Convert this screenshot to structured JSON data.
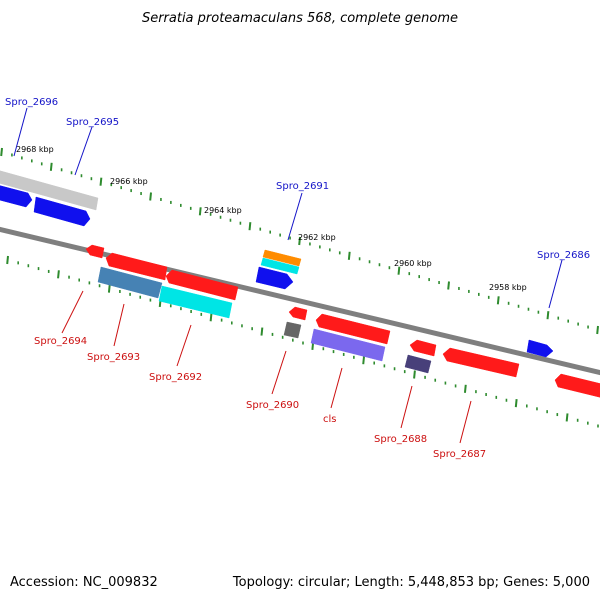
{
  "title": "Serratia proteamaculans 568, complete genome",
  "footer": {
    "accession": "Accession: NC_009832",
    "summary": "Topology: circular; Length: 5,448,853 bp; Genes: 5,000"
  },
  "colors": {
    "backbone": "#7f7f7f",
    "tick": "#2e8b2e",
    "forward_label": "#1414c8",
    "reverse_label": "#cc1010",
    "red": "#ff1a1a",
    "blue": "#1010ee",
    "silver": "#c8c8c8",
    "steel": "#4682b4",
    "cyan": "#00e5e5",
    "orange": "#ff8c00",
    "gray": "#666666",
    "violet": "#7b68ee",
    "darkslate": "#48407a"
  },
  "scale_labels": [
    "2968 kbp",
    "2966 kbp",
    "2964 kbp",
    "2962 kbp",
    "2960 kbp",
    "2958 kbp"
  ],
  "genes": {
    "spro_2696": "Spro_2696",
    "spro_2695": "Spro_2695",
    "spro_2694": "Spro_2694",
    "spro_2693": "Spro_2693",
    "spro_2692": "Spro_2692",
    "spro_2691": "Spro_2691",
    "spro_2690": "Spro_2690",
    "cls": "cls",
    "spro_2688": "Spro_2688",
    "spro_2687": "Spro_2687",
    "spro_2686": "Spro_2686"
  }
}
